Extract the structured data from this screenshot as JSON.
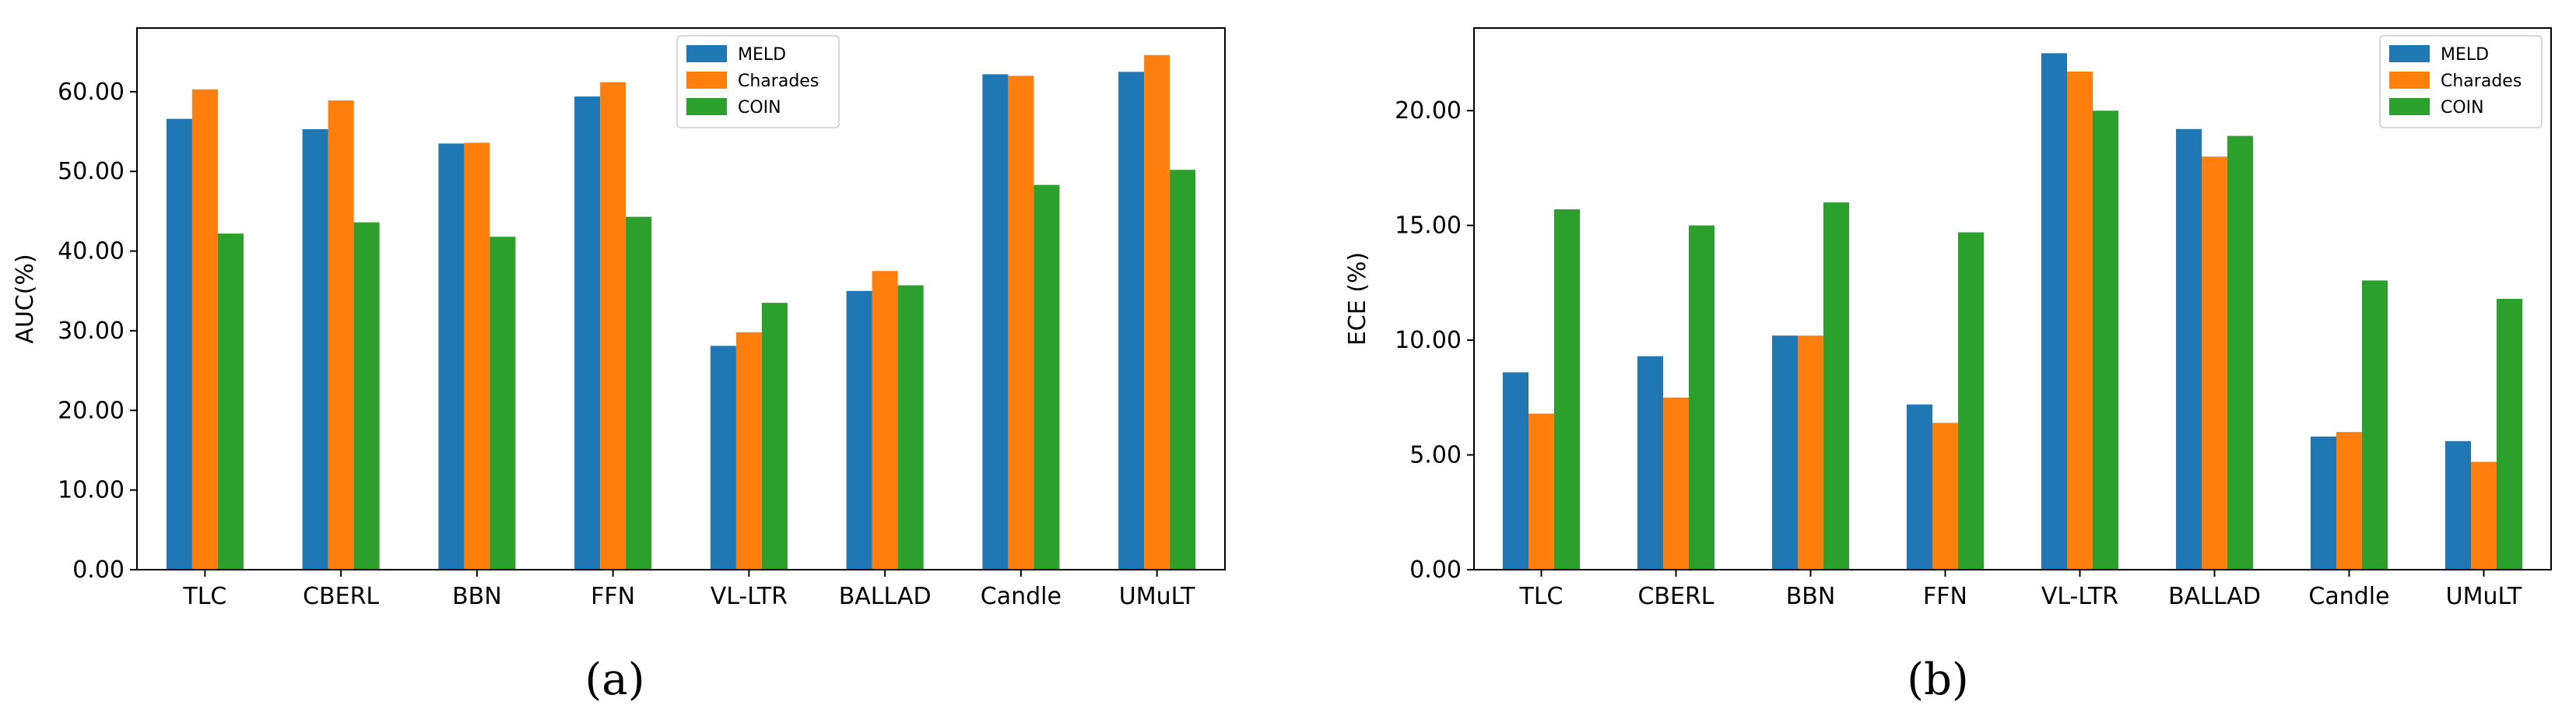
{
  "chart_data": [
    {
      "type": "bar",
      "panel_label": "(a)",
      "title": "",
      "xlabel": "",
      "ylabel": "AUC(%)",
      "ylim": [
        0,
        68
      ],
      "yticks": [
        0,
        10,
        20,
        30,
        40,
        50,
        60
      ],
      "ytick_labels": [
        "0.00",
        "10.00",
        "20.00",
        "30.00",
        "40.00",
        "50.00",
        "60.00"
      ],
      "categories": [
        "TLC",
        "CBERL",
        "BBN",
        "FFN",
        "VL-LTR",
        "BALLAD",
        "Candle",
        "UMuLT"
      ],
      "legend_position": "top-right",
      "grid": false,
      "series": [
        {
          "name": "MELD",
          "color": "#1f77b4",
          "values": [
            56.6,
            55.3,
            53.5,
            59.4,
            28.1,
            35.0,
            62.2,
            62.5
          ]
        },
        {
          "name": "Charades",
          "color": "#ff7f0e",
          "values": [
            60.3,
            58.9,
            53.6,
            61.2,
            29.8,
            37.5,
            62.0,
            64.6
          ]
        },
        {
          "name": "COIN",
          "color": "#2ca02c",
          "values": [
            42.2,
            43.6,
            41.8,
            44.3,
            33.5,
            35.7,
            48.3,
            50.2
          ]
        }
      ]
    },
    {
      "type": "bar",
      "panel_label": "(b)",
      "title": "",
      "xlabel": "",
      "ylabel": "ECE (%)",
      "ylim": [
        0,
        23.6
      ],
      "yticks": [
        0,
        5,
        10,
        15,
        20
      ],
      "ytick_labels": [
        "0.00",
        "5.00",
        "10.00",
        "15.00",
        "20.00"
      ],
      "categories": [
        "TLC",
        "CBERL",
        "BBN",
        "FFN",
        "VL-LTR",
        "BALLAD",
        "Candle",
        "UMuLT"
      ],
      "legend_position": "top-right",
      "grid": false,
      "series": [
        {
          "name": "MELD",
          "color": "#1f77b4",
          "values": [
            8.6,
            9.3,
            10.2,
            7.2,
            22.5,
            19.2,
            5.8,
            5.6
          ]
        },
        {
          "name": "Charades",
          "color": "#ff7f0e",
          "values": [
            6.8,
            7.5,
            10.2,
            6.4,
            21.7,
            18.0,
            6.0,
            4.7
          ]
        },
        {
          "name": "COIN",
          "color": "#2ca02c",
          "values": [
            15.7,
            15.0,
            16.0,
            14.7,
            20.0,
            18.9,
            12.6,
            11.8
          ]
        }
      ]
    }
  ]
}
